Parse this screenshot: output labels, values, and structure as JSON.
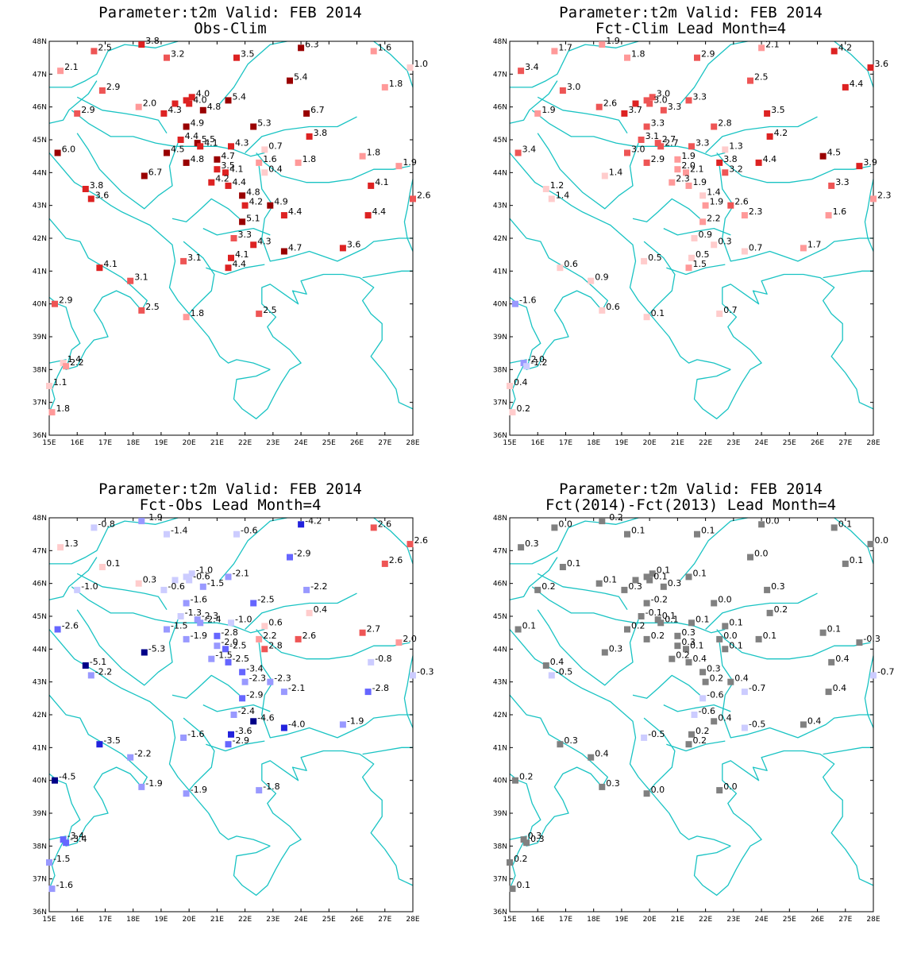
{
  "map": {
    "lon_range": [
      15,
      28
    ],
    "lat_range": [
      36,
      48
    ],
    "lon_ticks": [
      "15E",
      "16E",
      "17E",
      "18E",
      "19E",
      "20E",
      "21E",
      "22E",
      "23E",
      "24E",
      "25E",
      "26E",
      "27E",
      "28E"
    ],
    "lat_ticks": [
      "36N",
      "37N",
      "38N",
      "39N",
      "40N",
      "41N",
      "42N",
      "43N",
      "44N",
      "45N",
      "46N",
      "47N",
      "48N"
    ],
    "coastline_color": "#19c3c3"
  },
  "stations": [
    [
      18.3,
      47.9
    ],
    [
      16.6,
      47.7
    ],
    [
      19.2,
      47.5
    ],
    [
      21.7,
      47.5
    ],
    [
      24.0,
      47.8
    ],
    [
      26.6,
      47.7
    ],
    [
      27.9,
      47.2
    ],
    [
      15.4,
      47.1
    ],
    [
      23.6,
      46.8
    ],
    [
      16.9,
      46.5
    ],
    [
      27.0,
      46.6
    ],
    [
      20.1,
      46.3
    ],
    [
      19.9,
      46.2
    ],
    [
      20.0,
      46.1
    ],
    [
      18.2,
      46.0
    ],
    [
      19.5,
      46.1
    ],
    [
      19.1,
      45.8
    ],
    [
      16.0,
      45.8
    ],
    [
      21.4,
      46.2
    ],
    [
      24.2,
      45.8
    ],
    [
      20.5,
      45.9
    ],
    [
      19.9,
      45.4
    ],
    [
      22.3,
      45.4
    ],
    [
      24.3,
      45.1
    ],
    [
      19.7,
      45.0
    ],
    [
      20.3,
      44.9
    ],
    [
      20.4,
      44.8
    ],
    [
      21.5,
      44.8
    ],
    [
      22.7,
      44.7
    ],
    [
      19.2,
      44.6
    ],
    [
      15.3,
      44.6
    ],
    [
      21.0,
      44.4
    ],
    [
      19.9,
      44.3
    ],
    [
      23.9,
      44.3
    ],
    [
      26.2,
      44.5
    ],
    [
      22.5,
      44.3
    ],
    [
      27.5,
      44.2
    ],
    [
      22.7,
      44.0
    ],
    [
      21.0,
      44.1
    ],
    [
      21.3,
      44.0
    ],
    [
      18.4,
      43.9
    ],
    [
      20.8,
      43.7
    ],
    [
      21.4,
      43.6
    ],
    [
      16.3,
      43.5
    ],
    [
      21.9,
      43.3
    ],
    [
      26.5,
      43.6
    ],
    [
      16.5,
      43.2
    ],
    [
      22.0,
      43.0
    ],
    [
      22.9,
      43.0
    ],
    [
      28.0,
      43.2
    ],
    [
      23.4,
      42.7
    ],
    [
      21.9,
      42.5
    ],
    [
      26.4,
      42.7
    ],
    [
      21.6,
      42.0
    ],
    [
      22.3,
      41.8
    ],
    [
      25.5,
      41.7
    ],
    [
      23.4,
      41.6
    ],
    [
      21.5,
      41.4
    ],
    [
      19.8,
      41.3
    ],
    [
      21.4,
      41.1
    ],
    [
      16.8,
      41.1
    ],
    [
      17.9,
      40.7
    ],
    [
      15.2,
      40.0
    ],
    [
      18.3,
      39.8
    ],
    [
      19.9,
      39.6
    ],
    [
      22.5,
      39.7
    ],
    [
      15.5,
      38.2
    ],
    [
      15.6,
      38.1
    ],
    [
      15.0,
      37.5
    ],
    [
      15.1,
      36.7
    ]
  ],
  "color_scales": {
    "pos": [
      "#ffcccc",
      "#ff9999",
      "#ee5555",
      "#dd2222",
      "#990000"
    ],
    "neg": [
      "#ccccff",
      "#9999ff",
      "#6666ff",
      "#2222dd",
      "#000088"
    ],
    "zero": "#808080"
  },
  "panels": [
    {
      "title": "Parameter:t2m Valid: FEB 2014",
      "subtitle": "Obs-Clim",
      "labels": [
        "3.8",
        "2.5",
        "3.2",
        "3.5",
        "6.3",
        "1.6",
        "1.0",
        "2.1",
        "5.4",
        "2.9",
        "1.8",
        "4.0",
        "",
        "4.0",
        "2.0",
        "",
        "4.3",
        "2.9",
        "5.4",
        "6.7",
        "4.8",
        "4.9",
        "5.3",
        "3.8",
        "4.4",
        "5.5",
        "4.1",
        "4.3",
        "0.7",
        "4.5",
        "6.0",
        "4.7",
        "4.8",
        "1.8",
        "1.8",
        "1.6",
        "1.9",
        "0.4",
        "3.5",
        "4.1",
        "6.7",
        "4.2",
        "4.4",
        "3.8",
        "4.8",
        "4.1",
        "3.6",
        "4.2",
        "4.9",
        "2.6",
        "4.4",
        "5.1",
        "4.4",
        "3.3",
        "4.3",
        "3.6",
        "4.7",
        "4.1",
        "3.1",
        "4.4",
        "4.1",
        "3.1",
        "2.9",
        "2.5",
        "1.8",
        "2.5",
        "1.4",
        "2.2",
        "1.1",
        "1.8"
      ],
      "values": [
        3.8,
        2.5,
        3.2,
        3.5,
        6.3,
        1.6,
        1.0,
        2.1,
        5.4,
        2.9,
        1.8,
        4.0,
        4.0,
        4.0,
        2.0,
        4.3,
        4.3,
        2.9,
        5.4,
        6.7,
        4.8,
        4.9,
        5.3,
        3.8,
        4.4,
        5.5,
        4.1,
        4.3,
        0.7,
        4.5,
        6.0,
        4.7,
        4.8,
        1.8,
        1.8,
        1.6,
        1.9,
        0.4,
        3.5,
        4.1,
        6.7,
        4.2,
        4.4,
        3.8,
        4.8,
        4.1,
        3.6,
        4.2,
        4.9,
        2.6,
        4.4,
        5.1,
        4.4,
        3.3,
        4.3,
        3.6,
        4.7,
        4.1,
        3.1,
        4.4,
        4.1,
        3.1,
        2.9,
        2.5,
        1.8,
        2.5,
        1.4,
        2.2,
        1.1,
        1.8
      ]
    },
    {
      "title": "Parameter:t2m Valid: FEB 2014",
      "subtitle": "Fct-Clim Lead Month=4",
      "labels": [
        "1.9",
        "1.7",
        "1.8",
        "2.9",
        "2.1",
        "4.2",
        "3.6",
        "3.4",
        "2.5",
        "3.0",
        "4.4",
        "3.0",
        "",
        "3.0",
        "2.6",
        "",
        "3.7",
        "1.9",
        "3.3",
        "3.5",
        "3.3",
        "3.3",
        "2.8",
        "4.2",
        "3.1",
        "2.7",
        "2.7",
        "3.3",
        "1.3",
        "3.0",
        "3.4",
        "1.9",
        "2.9",
        "4.4",
        "4.5",
        "3.8",
        "3.9",
        "3.2",
        "2.0",
        "2.1",
        "1.4",
        "2.3",
        "1.9",
        "1.2",
        "1.4",
        "3.3",
        "1.4",
        "1.9",
        "2.6",
        "2.3",
        "2.3",
        "2.2",
        "1.6",
        "0.9",
        "0.3",
        "1.7",
        "0.7",
        "0.5",
        "0.5",
        "1.5",
        "0.6",
        "0.9",
        "-1.6",
        "0.6",
        "0.1",
        "0.7",
        "-2.0",
        "-1.2",
        "0.4",
        "0.2"
      ],
      "values": [
        1.9,
        1.7,
        1.8,
        2.9,
        2.1,
        4.2,
        3.6,
        3.4,
        2.5,
        3.0,
        4.4,
        3.0,
        3.0,
        3.0,
        2.6,
        3.7,
        3.7,
        1.9,
        3.3,
        3.5,
        3.3,
        3.3,
        2.8,
        4.2,
        3.1,
        2.7,
        2.7,
        3.3,
        1.3,
        3.0,
        3.4,
        1.9,
        2.9,
        4.4,
        4.5,
        3.8,
        3.9,
        3.2,
        2.0,
        2.1,
        1.4,
        2.3,
        1.9,
        1.2,
        1.4,
        3.3,
        1.4,
        1.9,
        2.6,
        2.3,
        2.3,
        2.2,
        1.6,
        0.9,
        0.3,
        1.7,
        0.7,
        0.5,
        0.5,
        1.5,
        0.6,
        0.9,
        -1.6,
        0.6,
        0.1,
        0.7,
        -2.0,
        -1.2,
        0.4,
        0.2
      ]
    },
    {
      "title": "Parameter:t2m Valid: FEB 2014",
      "subtitle": "Fct-Obs Lead Month=4",
      "labels": [
        "-1.9",
        "-0.8",
        "-1.4",
        "-0.6",
        "-4.2",
        "2.6",
        "2.6",
        "1.3",
        "-2.9",
        "0.1",
        "2.6",
        "-1.0",
        "",
        "-0.6",
        "0.3",
        "",
        "-0.6",
        "-1.0",
        "-2.1",
        "-2.2",
        "-1.5",
        "-1.6",
        "-2.5",
        "0.4",
        "-1.3",
        "-2.3",
        "-2.4",
        "-1.0",
        "0.6",
        "-1.5",
        "-2.6",
        "-2.8",
        "-1.9",
        "2.6",
        "2.7",
        "2.2",
        "2.0",
        "2.8",
        "-2.0",
        "-2.5",
        "-5.3",
        "-1.5",
        "-2.5",
        "-5.1",
        "-3.4",
        "-0.8",
        "-2.2",
        "-2.3",
        "-2.3",
        "-0.3",
        "-2.1",
        "-2.9",
        "-2.8",
        "-2.4",
        "-4.6",
        "-1.9",
        "-4.0",
        "-3.6",
        "-1.6",
        "-2.9",
        "-3.5",
        "-2.2",
        "-4.5",
        "-1.9",
        "-1.9",
        "-1.8",
        "-3.4",
        "-3.4",
        "-1.5",
        "-1.6"
      ],
      "values": [
        -1.9,
        -0.8,
        -1.4,
        -0.6,
        -4.2,
        2.6,
        2.6,
        1.3,
        -2.9,
        0.1,
        2.6,
        -1.0,
        -1.0,
        -0.6,
        0.3,
        -0.6,
        -0.6,
        -1.0,
        -2.1,
        -2.2,
        -1.5,
        -1.6,
        -2.5,
        0.4,
        -1.3,
        -2.3,
        -2.4,
        -1.0,
        0.6,
        -1.5,
        -2.6,
        -2.8,
        -1.9,
        2.6,
        2.7,
        2.2,
        2.0,
        2.8,
        -2.0,
        -2.5,
        -5.3,
        -1.5,
        -2.5,
        -5.1,
        -3.4,
        -0.8,
        -2.2,
        -2.3,
        -2.3,
        -0.3,
        -2.1,
        -2.9,
        -2.8,
        -2.4,
        -4.6,
        -1.9,
        -4.0,
        -3.6,
        -1.6,
        -2.9,
        -3.5,
        -2.2,
        -4.5,
        -1.9,
        -1.9,
        -1.8,
        -3.4,
        -3.4,
        -1.5,
        -1.6
      ]
    },
    {
      "title": "Parameter:t2m Valid: FEB 2014",
      "subtitle": "Fct(2014)-Fct(2013) Lead Month=4",
      "labels": [
        "-0.2",
        "0.0",
        "0.1",
        "0.1",
        "0.0",
        "0.1",
        "0.0",
        "0.3",
        "0.0",
        "0.1",
        "0.1",
        "0.1",
        "",
        "0.1",
        "0.1",
        "",
        "0.3",
        "0.2",
        "0.1",
        "0.3",
        "0.3",
        "-0.2",
        "0.0",
        "0.2",
        "-0.1",
        "0.1",
        "0.1",
        "0.1",
        "0.1",
        "0.2",
        "0.1",
        "0.3",
        "0.2",
        "0.1",
        "0.1",
        "0.0",
        "-0.3",
        "0.1",
        "0.3",
        "0.1",
        "0.3",
        "0.2",
        "0.4",
        "0.4",
        "0.3",
        "0.4",
        "-0.5",
        "0.2",
        "0.4",
        "-0.7",
        "-0.7",
        "-0.6",
        "0.4",
        "-0.6",
        "0.4",
        "0.4",
        "-0.5",
        "0.2",
        "-0.5",
        "0.2",
        "0.3",
        "0.4",
        "0.2",
        "0.3",
        "0.0",
        "0.0",
        "0.3",
        "0.3",
        "0.2",
        "0.1"
      ],
      "values": [
        -0.2,
        0.0,
        0.1,
        0.1,
        0.0,
        0.1,
        0.0,
        0.3,
        0.0,
        0.1,
        0.1,
        0.1,
        0.1,
        0.1,
        0.1,
        0.3,
        0.3,
        0.2,
        0.1,
        0.3,
        0.3,
        -0.2,
        0.0,
        0.2,
        -0.1,
        0.1,
        0.1,
        0.1,
        0.1,
        0.2,
        0.1,
        0.3,
        0.2,
        0.1,
        0.1,
        0.0,
        -0.3,
        0.1,
        0.3,
        0.1,
        0.3,
        0.2,
        0.4,
        0.4,
        0.3,
        0.4,
        -0.5,
        0.2,
        0.4,
        -0.7,
        -0.7,
        -0.6,
        0.4,
        -0.6,
        0.4,
        0.4,
        -0.5,
        0.2,
        -0.5,
        0.2,
        0.3,
        0.4,
        0.2,
        0.3,
        0.0,
        0.0,
        0.3,
        0.3,
        0.2,
        0.1
      ]
    }
  ]
}
